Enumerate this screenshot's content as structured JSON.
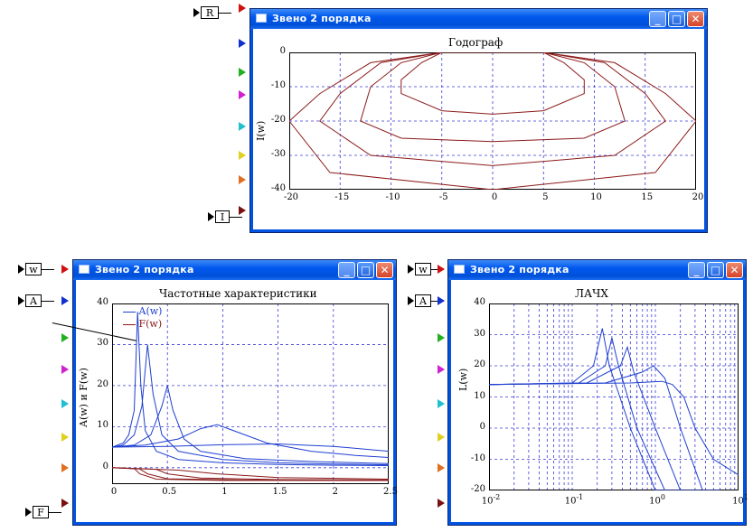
{
  "windows": [
    {
      "id": "hodograph",
      "title": "Звено 2 порядка",
      "chart_title": "Годограф",
      "ylabel": "I(w)",
      "xticks": [
        "-20",
        "-15",
        "-10",
        "-5",
        "0",
        "5",
        "10",
        "15",
        "20"
      ],
      "yticks": [
        "0",
        "-10",
        "-20",
        "-30",
        "-40"
      ]
    },
    {
      "id": "freq",
      "title": "Звено 2 порядка",
      "chart_title": "Частотные характеристики",
      "ylabel": "A(w) и F(w)",
      "xticks": [
        "0",
        "0.5",
        "1",
        "1.5",
        "2",
        "2.5"
      ],
      "yticks": [
        "40",
        "30",
        "20",
        "10",
        "0"
      ],
      "legend": [
        "A(w)",
        "F(w)"
      ]
    },
    {
      "id": "lachx",
      "title": "Звено 2 порядка",
      "chart_title": "ЛАЧХ",
      "ylabel": "L(w)",
      "xticks": [
        "10",
        "10",
        "10",
        "10"
      ],
      "xexp": [
        "-2",
        "-1",
        "0",
        "1"
      ],
      "yticks": [
        "40",
        "30",
        "20",
        "10",
        "0",
        "-10",
        "-20"
      ]
    }
  ],
  "ports": {
    "hodograph_in": [
      "R",
      "I"
    ],
    "freq_in": [
      "w",
      "A",
      "F"
    ],
    "lachx_in": [
      "w",
      "A"
    ]
  },
  "chart_data": [
    {
      "type": "line",
      "title": "Годограф",
      "xlabel": "",
      "ylabel": "I(w)",
      "xlim": [
        -20,
        20
      ],
      "ylim": [
        -40,
        0
      ],
      "grid": true,
      "series": [
        {
          "x": [
            0,
            5,
            7,
            9,
            9,
            5,
            0,
            -5,
            -9,
            -9,
            -7,
            -5,
            0
          ],
          "y": [
            0,
            0,
            -3,
            -8,
            -12,
            -17,
            -18,
            -17,
            -12,
            -8,
            -3,
            0,
            0
          ]
        },
        {
          "x": [
            0,
            5,
            9,
            12,
            13,
            9,
            0,
            -9,
            -13,
            -12,
            -9,
            -5,
            0
          ],
          "y": [
            0,
            0,
            -3,
            -10,
            -20,
            -25,
            -26,
            -25,
            -20,
            -10,
            -3,
            0,
            0
          ]
        },
        {
          "x": [
            0,
            5,
            11,
            15,
            17,
            12,
            0,
            -12,
            -17,
            -15,
            -11,
            -5,
            0
          ],
          "y": [
            0,
            0,
            -3,
            -12,
            -20,
            -30,
            -33,
            -30,
            -20,
            -12,
            -3,
            0,
            0
          ]
        },
        {
          "x": [
            0,
            5,
            12,
            17,
            20,
            16,
            0,
            -16,
            -20,
            -17,
            -12,
            -5,
            0
          ],
          "y": [
            0,
            0,
            -3,
            -12,
            -20,
            -35,
            -40,
            -35,
            -20,
            -12,
            -3,
            0,
            0
          ]
        }
      ]
    },
    {
      "type": "line",
      "title": "Частотные характеристики",
      "xlabel": "",
      "ylabel": "A(w) и F(w)",
      "xlim": [
        0,
        2.5
      ],
      "ylim": [
        -4,
        40
      ],
      "grid": true,
      "series": [
        {
          "name": "A(w)",
          "x": [
            0,
            0.1,
            0.15,
            0.2,
            0.23,
            0.26,
            0.3,
            0.4,
            0.6,
            1,
            1.5,
            2,
            2.5
          ],
          "y": [
            5,
            6,
            8,
            14,
            38,
            20,
            9,
            4,
            2,
            1.2,
            0.8,
            0.6,
            0.5
          ]
        },
        {
          "name": "A(w)",
          "x": [
            0,
            0.1,
            0.2,
            0.27,
            0.32,
            0.37,
            0.45,
            0.6,
            1,
            1.5,
            2,
            2.5
          ],
          "y": [
            5,
            5.5,
            8,
            15,
            30,
            18,
            8,
            4,
            2,
            1.2,
            0.9,
            0.7
          ]
        },
        {
          "name": "A(w)",
          "x": [
            0,
            0.2,
            0.35,
            0.45,
            0.5,
            0.55,
            0.65,
            0.8,
            1.2,
            1.8,
            2.5
          ],
          "y": [
            5,
            5.5,
            8,
            15,
            20,
            14,
            7,
            4,
            2.2,
            1.5,
            1
          ]
        },
        {
          "name": "A(w)",
          "x": [
            0,
            0.3,
            0.6,
            0.8,
            0.95,
            1.1,
            1.4,
            1.8,
            2.2,
            2.5
          ],
          "y": [
            5,
            5.5,
            7,
            9.5,
            10.5,
            9,
            6,
            4,
            3,
            2.5
          ]
        },
        {
          "name": "A(w)",
          "x": [
            0,
            0.5,
            1,
            1.5,
            2,
            2.5
          ],
          "y": [
            5,
            5.2,
            5.6,
            5.8,
            5.2,
            4
          ]
        },
        {
          "name": "F(w)",
          "x": [
            0,
            0.2,
            0.25,
            0.4,
            1,
            2.5
          ],
          "y": [
            0,
            -0.2,
            -1.5,
            -2.8,
            -3.1,
            -3.1
          ]
        },
        {
          "name": "F(w)",
          "x": [
            0,
            0.25,
            0.32,
            0.5,
            1.2,
            2.5
          ],
          "y": [
            0,
            -0.3,
            -1.5,
            -2.7,
            -3,
            -3.1
          ]
        },
        {
          "name": "F(w)",
          "x": [
            0,
            0.4,
            0.5,
            0.8,
            1.5,
            2.5
          ],
          "y": [
            0,
            -0.4,
            -1.5,
            -2.5,
            -2.9,
            -3
          ]
        },
        {
          "name": "F(w)",
          "x": [
            0,
            0.6,
            0.95,
            1.5,
            2.5
          ],
          "y": [
            0,
            -0.6,
            -1.5,
            -2.4,
            -2.8
          ]
        }
      ]
    },
    {
      "type": "line",
      "title": "ЛАЧХ",
      "xlabel": "",
      "ylabel": "L(w)",
      "xscale": "log",
      "xlim": [
        0.01,
        10
      ],
      "ylim": [
        -20,
        40
      ],
      "grid": true,
      "series": [
        {
          "x": [
            0.01,
            0.1,
            0.18,
            0.23,
            0.28,
            0.5,
            1,
            2
          ],
          "y": [
            14,
            14.5,
            20,
            32,
            20,
            0,
            -20,
            -20
          ]
        },
        {
          "x": [
            0.01,
            0.12,
            0.25,
            0.3,
            0.36,
            0.6,
            1.3,
            2.5
          ],
          "y": [
            14,
            14.5,
            20,
            29,
            20,
            0,
            -20,
            -20
          ]
        },
        {
          "x": [
            0.01,
            0.15,
            0.38,
            0.46,
            0.55,
            1,
            2,
            3.5
          ],
          "y": [
            14,
            14.5,
            20,
            26,
            18,
            0,
            -20,
            -20
          ]
        },
        {
          "x": [
            0.01,
            0.25,
            0.7,
            0.95,
            1.3,
            2,
            3.7,
            6
          ],
          "y": [
            14,
            14.5,
            18,
            20,
            16,
            0,
            -20,
            -20
          ]
        },
        {
          "x": [
            0.01,
            0.5,
            1.2,
            1.6,
            2.2,
            3,
            5,
            10
          ],
          "y": [
            14,
            14.5,
            15,
            14,
            10,
            0,
            -10,
            -15
          ]
        }
      ]
    }
  ],
  "colors": {
    "hodograph_line": "#8b1a1a",
    "amp_line": "#1f3fd0",
    "phase_line": "#8b1a1a",
    "lachx_line": "#1f3fd0",
    "grid": "#3b3bd8"
  }
}
